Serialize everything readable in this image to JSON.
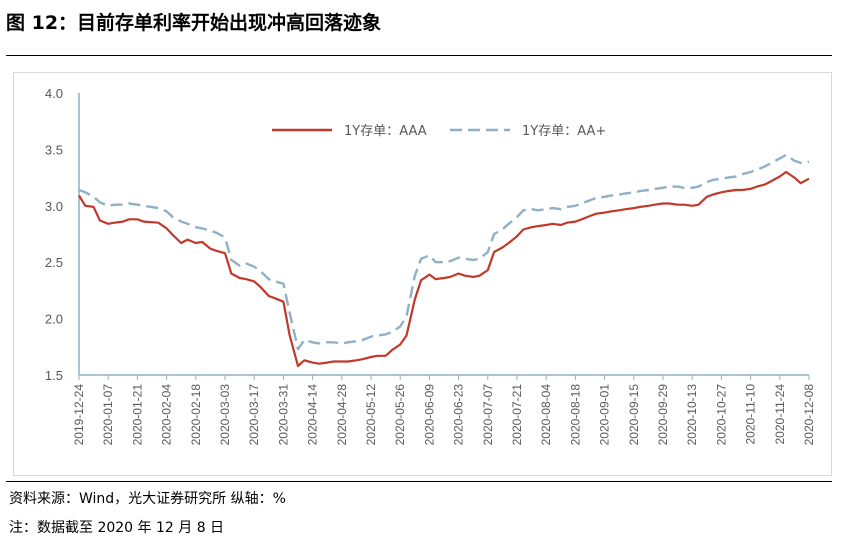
{
  "header": {
    "title": "图 12：目前存单利率开始出现冲高回落迹象"
  },
  "footer": {
    "source": "资料来源：Wind，光大证券研究所 纵轴：%",
    "note": "注：数据截至 2020 年 12 月 8 日"
  },
  "colors": {
    "aaa": "#c0392b",
    "aa_plus": "#8fb0c6",
    "axis": "#8fb0c6",
    "text": "#595959"
  },
  "chart_data": {
    "type": "line",
    "title": "",
    "ylim": [
      1.5,
      4.0
    ],
    "y_ticks": [
      "4.0",
      "3.5",
      "3.0",
      "2.5",
      "2.0",
      "1.5"
    ],
    "grid": false,
    "legend_position": "top-center",
    "x_tick_labels": [
      "2019-12-24",
      "2020-01-07",
      "2020-01-21",
      "2020-02-04",
      "2020-02-18",
      "2020-03-03",
      "2020-03-17",
      "2020-03-31",
      "2020-04-14",
      "2020-04-28",
      "2020-05-12",
      "2020-05-26",
      "2020-06-09",
      "2020-06-23",
      "2020-07-07",
      "2020-07-21",
      "2020-08-04",
      "2020-08-18",
      "2020-09-01",
      "2020-09-15",
      "2020-09-29",
      "2020-10-13",
      "2020-10-27",
      "2020-11-10",
      "2020-11-24",
      "2020-12-08"
    ],
    "series": [
      {
        "name": "1Y存单：AAA",
        "style": "solid",
        "x": [
          "2019-12-24",
          "2019-12-27",
          "2019-12-31",
          "2020-01-03",
          "2020-01-07",
          "2020-01-10",
          "2020-01-14",
          "2020-01-17",
          "2020-01-21",
          "2020-01-24",
          "2020-01-31",
          "2020-02-04",
          "2020-02-07",
          "2020-02-11",
          "2020-02-14",
          "2020-02-18",
          "2020-02-21",
          "2020-02-25",
          "2020-02-28",
          "2020-03-03",
          "2020-03-06",
          "2020-03-10",
          "2020-03-13",
          "2020-03-17",
          "2020-03-20",
          "2020-03-24",
          "2020-03-27",
          "2020-03-31",
          "2020-04-03",
          "2020-04-07",
          "2020-04-10",
          "2020-04-14",
          "2020-04-17",
          "2020-04-21",
          "2020-04-24",
          "2020-04-28",
          "2020-05-01",
          "2020-05-05",
          "2020-05-08",
          "2020-05-12",
          "2020-05-15",
          "2020-05-19",
          "2020-05-22",
          "2020-05-26",
          "2020-05-29",
          "2020-06-02",
          "2020-06-05",
          "2020-06-09",
          "2020-06-12",
          "2020-06-16",
          "2020-06-19",
          "2020-06-23",
          "2020-06-26",
          "2020-06-30",
          "2020-07-03",
          "2020-07-07",
          "2020-07-10",
          "2020-07-14",
          "2020-07-17",
          "2020-07-21",
          "2020-07-24",
          "2020-07-28",
          "2020-07-31",
          "2020-08-04",
          "2020-08-07",
          "2020-08-11",
          "2020-08-14",
          "2020-08-18",
          "2020-08-21",
          "2020-08-25",
          "2020-08-28",
          "2020-09-01",
          "2020-09-04",
          "2020-09-08",
          "2020-09-11",
          "2020-09-15",
          "2020-09-18",
          "2020-09-22",
          "2020-09-25",
          "2020-09-29",
          "2020-10-02",
          "2020-10-06",
          "2020-10-09",
          "2020-10-13",
          "2020-10-16",
          "2020-10-20",
          "2020-10-23",
          "2020-10-27",
          "2020-10-30",
          "2020-11-03",
          "2020-11-06",
          "2020-11-10",
          "2020-11-13",
          "2020-11-17",
          "2020-11-20",
          "2020-11-24",
          "2020-11-27",
          "2020-12-01",
          "2020-12-04",
          "2020-12-08"
        ],
        "values": [
          3.09,
          3.0,
          2.99,
          2.87,
          2.84,
          2.85,
          2.86,
          2.88,
          2.88,
          2.86,
          2.85,
          2.8,
          2.74,
          2.67,
          2.7,
          2.67,
          2.68,
          2.62,
          2.6,
          2.58,
          2.4,
          2.36,
          2.35,
          2.33,
          2.28,
          2.2,
          2.18,
          2.15,
          1.85,
          1.58,
          1.63,
          1.61,
          1.6,
          1.61,
          1.62,
          1.62,
          1.62,
          1.63,
          1.64,
          1.66,
          1.67,
          1.67,
          1.72,
          1.77,
          1.85,
          2.17,
          2.34,
          2.39,
          2.35,
          2.36,
          2.37,
          2.4,
          2.38,
          2.37,
          2.38,
          2.43,
          2.59,
          2.63,
          2.67,
          2.73,
          2.79,
          2.81,
          2.82,
          2.83,
          2.84,
          2.83,
          2.85,
          2.86,
          2.88,
          2.91,
          2.93,
          2.94,
          2.95,
          2.96,
          2.97,
          2.98,
          2.99,
          3.0,
          3.01,
          3.02,
          3.02,
          3.01,
          3.01,
          3.0,
          3.01,
          3.08,
          3.1,
          3.12,
          3.13,
          3.14,
          3.14,
          3.15,
          3.17,
          3.19,
          3.22,
          3.26,
          3.3,
          3.25,
          3.2,
          3.24
        ]
      },
      {
        "name": "1Y存单：AA+",
        "style": "dashed",
        "x": [
          "2019-12-24",
          "2019-12-27",
          "2019-12-31",
          "2020-01-03",
          "2020-01-07",
          "2020-01-10",
          "2020-01-14",
          "2020-01-17",
          "2020-01-21",
          "2020-01-24",
          "2020-01-31",
          "2020-02-04",
          "2020-02-07",
          "2020-02-11",
          "2020-02-14",
          "2020-02-18",
          "2020-02-21",
          "2020-02-25",
          "2020-02-28",
          "2020-03-03",
          "2020-03-06",
          "2020-03-10",
          "2020-03-13",
          "2020-03-17",
          "2020-03-20",
          "2020-03-24",
          "2020-03-27",
          "2020-03-31",
          "2020-04-03",
          "2020-04-07",
          "2020-04-10",
          "2020-04-14",
          "2020-04-17",
          "2020-04-21",
          "2020-04-24",
          "2020-04-28",
          "2020-05-01",
          "2020-05-05",
          "2020-05-08",
          "2020-05-12",
          "2020-05-15",
          "2020-05-19",
          "2020-05-22",
          "2020-05-26",
          "2020-05-29",
          "2020-06-02",
          "2020-06-05",
          "2020-06-09",
          "2020-06-12",
          "2020-06-16",
          "2020-06-19",
          "2020-06-23",
          "2020-06-26",
          "2020-06-30",
          "2020-07-03",
          "2020-07-07",
          "2020-07-10",
          "2020-07-14",
          "2020-07-17",
          "2020-07-21",
          "2020-07-24",
          "2020-07-28",
          "2020-07-31",
          "2020-08-04",
          "2020-08-07",
          "2020-08-11",
          "2020-08-14",
          "2020-08-18",
          "2020-08-21",
          "2020-08-25",
          "2020-08-28",
          "2020-09-01",
          "2020-09-04",
          "2020-09-08",
          "2020-09-11",
          "2020-09-15",
          "2020-09-18",
          "2020-09-22",
          "2020-09-25",
          "2020-09-29",
          "2020-10-02",
          "2020-10-06",
          "2020-10-09",
          "2020-10-13",
          "2020-10-16",
          "2020-10-20",
          "2020-10-23",
          "2020-10-27",
          "2020-10-30",
          "2020-11-03",
          "2020-11-06",
          "2020-11-10",
          "2020-11-13",
          "2020-11-17",
          "2020-11-20",
          "2020-11-24",
          "2020-11-27",
          "2020-12-01",
          "2020-12-04",
          "2020-12-08"
        ],
        "values": [
          3.14,
          3.12,
          3.08,
          3.03,
          3.0,
          3.01,
          3.01,
          3.02,
          3.01,
          3.0,
          2.98,
          2.95,
          2.9,
          2.86,
          2.84,
          2.81,
          2.8,
          2.78,
          2.76,
          2.72,
          2.52,
          2.47,
          2.49,
          2.46,
          2.42,
          2.35,
          2.33,
          2.31,
          2.05,
          1.73,
          1.81,
          1.79,
          1.78,
          1.79,
          1.79,
          1.78,
          1.79,
          1.8,
          1.81,
          1.84,
          1.85,
          1.86,
          1.88,
          1.93,
          2.02,
          2.38,
          2.53,
          2.56,
          2.5,
          2.5,
          2.51,
          2.54,
          2.53,
          2.52,
          2.53,
          2.59,
          2.75,
          2.79,
          2.84,
          2.9,
          2.96,
          2.97,
          2.96,
          2.97,
          2.98,
          2.97,
          2.99,
          3.0,
          3.02,
          3.05,
          3.07,
          3.08,
          3.09,
          3.1,
          3.11,
          3.12,
          3.13,
          3.14,
          3.15,
          3.16,
          3.17,
          3.17,
          3.16,
          3.16,
          3.17,
          3.21,
          3.23,
          3.24,
          3.25,
          3.26,
          3.28,
          3.3,
          3.32,
          3.35,
          3.38,
          3.42,
          3.45,
          3.4,
          3.38,
          3.39
        ]
      }
    ]
  }
}
